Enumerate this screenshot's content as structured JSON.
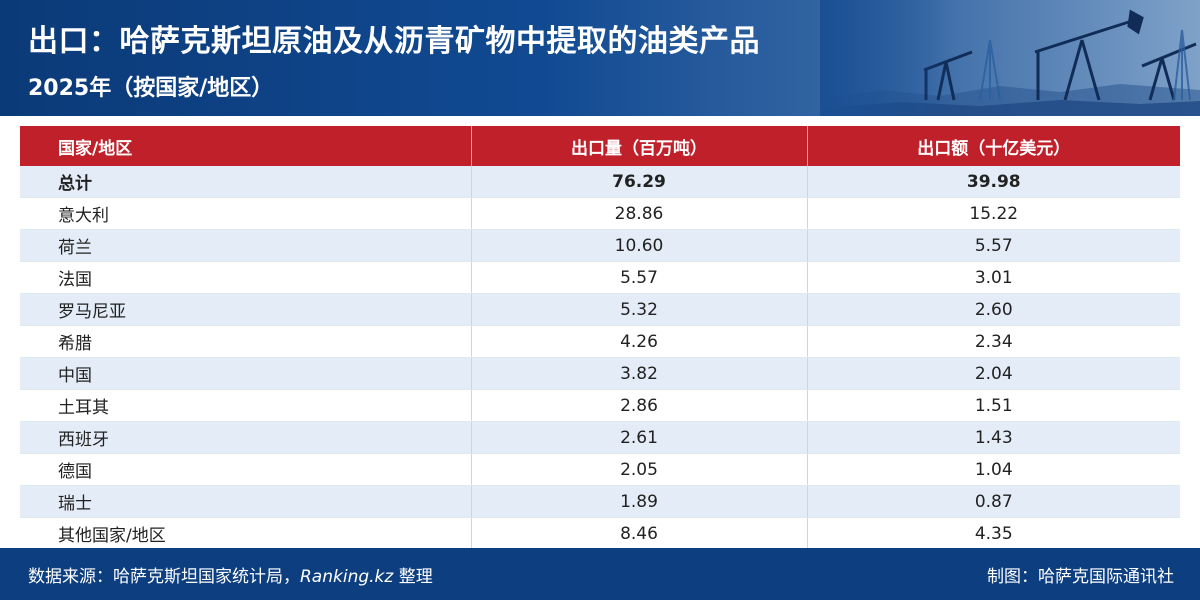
{
  "header": {
    "title": "出口：哈萨克斯坦原油及从沥青矿物中提取的油类产品",
    "subtitle": "2025年（按国家/地区）"
  },
  "colors": {
    "header_bg": "#0b3a78",
    "table_header_bg": "#c0202a",
    "row_alt_bg": "#e3ecf7",
    "footer_bg": "#0d3f80"
  },
  "chart_data": {
    "type": "table",
    "columns": [
      "国家/地区",
      "出口量（百万吨）",
      "出口额（十亿美元）"
    ],
    "rows": [
      {
        "country": "总计",
        "volume": "76.29",
        "value": "39.98",
        "bold": true
      },
      {
        "country": "意大利",
        "volume": "28.86",
        "value": "15.22"
      },
      {
        "country": "荷兰",
        "volume": "10.60",
        "value": "5.57"
      },
      {
        "country": "法国",
        "volume": "5.57",
        "value": "3.01"
      },
      {
        "country": "罗马尼亚",
        "volume": "5.32",
        "value": "2.60"
      },
      {
        "country": "希腊",
        "volume": "4.26",
        "value": "2.34"
      },
      {
        "country": "中国",
        "volume": "3.82",
        "value": "2.04"
      },
      {
        "country": "土耳其",
        "volume": "2.86",
        "value": "1.51"
      },
      {
        "country": "西班牙",
        "volume": "2.61",
        "value": "1.43"
      },
      {
        "country": "德国",
        "volume": "2.05",
        "value": "1.04"
      },
      {
        "country": "瑞士",
        "volume": "1.89",
        "value": "0.87"
      },
      {
        "country": "其他国家/地区",
        "volume": "8.46",
        "value": "4.35"
      }
    ]
  },
  "footer": {
    "source_prefix": "数据来源：哈萨克斯坦国家统计局，",
    "source_italic": "Ranking.kz",
    "source_suffix": " 整理",
    "credit": "制图：哈萨克国际通讯社"
  }
}
